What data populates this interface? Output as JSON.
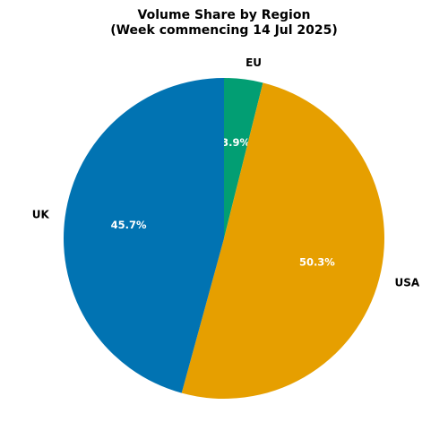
{
  "chart_data": {
    "type": "pie",
    "title": "Volume Share by Region",
    "subtitle": "(Week commencing 14 Jul 2025)",
    "categories": [
      "EU",
      "USA",
      "UK"
    ],
    "values": [
      3.9,
      50.3,
      45.7
    ],
    "value_labels": [
      "3.9%",
      "50.3%",
      "45.7%"
    ],
    "colors": [
      "#029e73",
      "#e69f00",
      "#0173b2"
    ]
  }
}
